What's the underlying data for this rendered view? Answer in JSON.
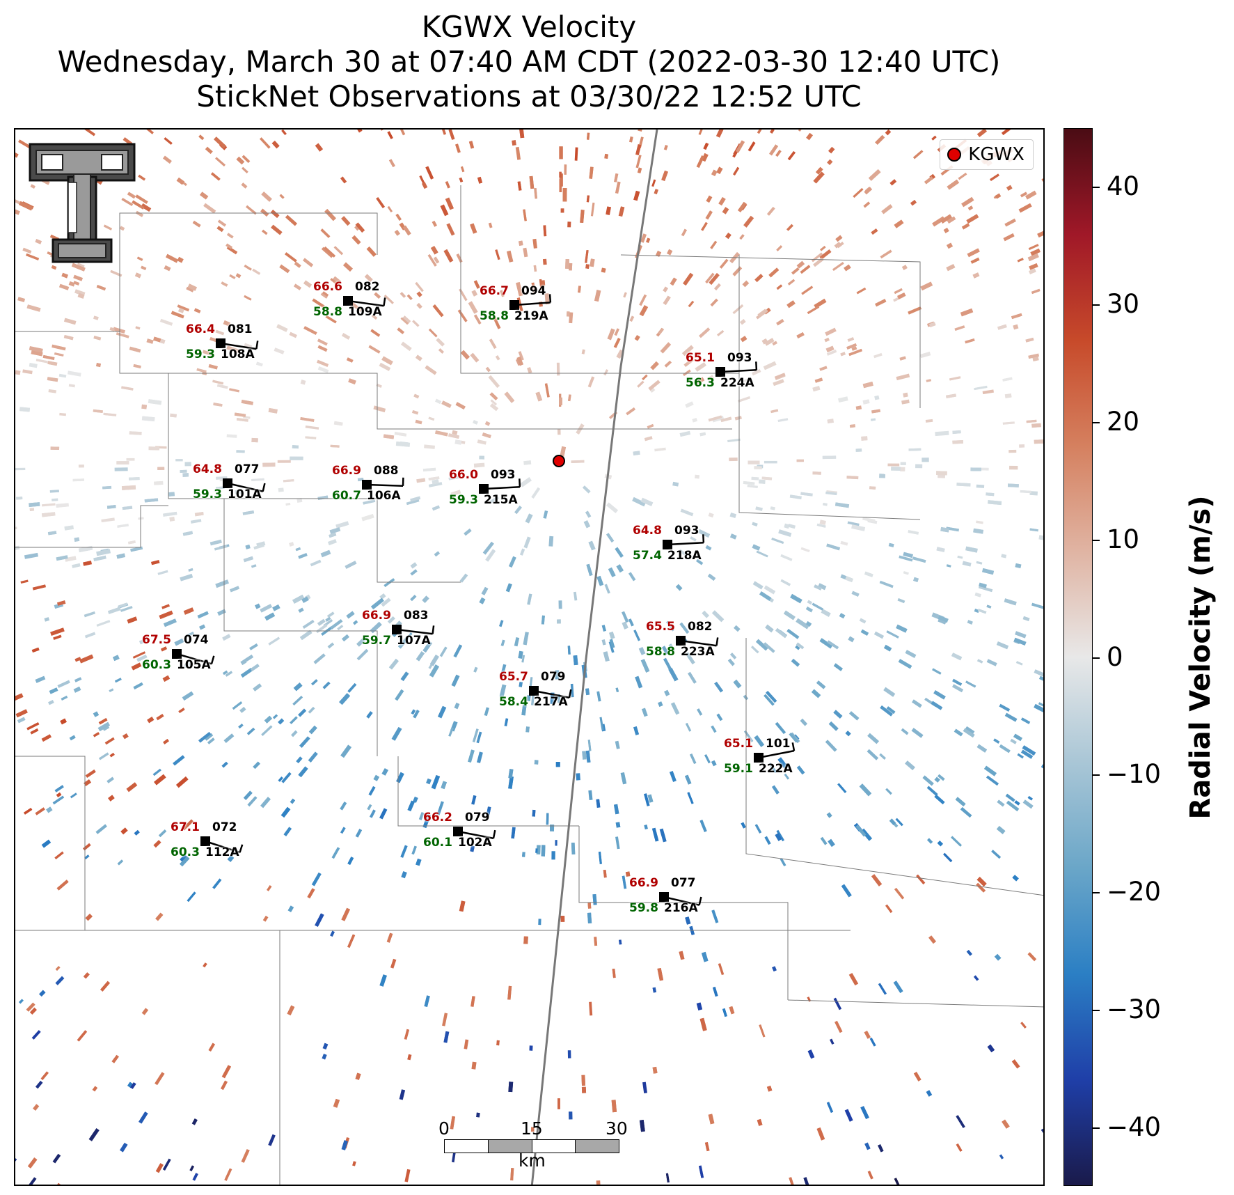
{
  "title": {
    "line1": "KGWX Velocity",
    "line2": "Wednesday, March 30 at 07:40 AM CDT (2022-03-30 12:40 UTC)",
    "line3": "StickNet Observations at 03/30/22 12:52 UTC"
  },
  "legend": {
    "label": "KGWX",
    "marker_color": "#e00000"
  },
  "colorbar": {
    "title": "Radial Velocity (m/s)",
    "min": -45,
    "max": 45,
    "ticks": [
      {
        "value": 40,
        "label": "40"
      },
      {
        "value": 30,
        "label": "30"
      },
      {
        "value": 20,
        "label": "20"
      },
      {
        "value": 10,
        "label": "10"
      },
      {
        "value": 0,
        "label": "0"
      },
      {
        "value": -10,
        "label": "−10"
      },
      {
        "value": -20,
        "label": "−20"
      },
      {
        "value": -30,
        "label": "−30"
      },
      {
        "value": -40,
        "label": "−40"
      }
    ],
    "colors": [
      "#1a1a4a",
      "#1f3fa8",
      "#2b7fc4",
      "#6aa6c8",
      "#a9c6d6",
      "#e8e8e8",
      "#e0b4a3",
      "#d5805f",
      "#c74a2a",
      "#a01828",
      "#4a0c14"
    ]
  },
  "scale_bar": {
    "labels": [
      "0",
      "15",
      "30"
    ],
    "unit": "km"
  },
  "stations": [
    {
      "id": "109A",
      "temp": "66.6",
      "dew": "58.8",
      "dir": "082"
    },
    {
      "id": "219A",
      "temp": "66.7",
      "dew": "58.8",
      "dir": "094"
    },
    {
      "id": "108A",
      "temp": "66.4",
      "dew": "59.3",
      "dir": "081"
    },
    {
      "id": "224A",
      "temp": "65.1",
      "dew": "56.3",
      "dir": "093"
    },
    {
      "id": "101A",
      "temp": "64.8",
      "dew": "59.3",
      "dir": "077"
    },
    {
      "id": "106A",
      "temp": "66.9",
      "dew": "60.7",
      "dir": "088"
    },
    {
      "id": "215A",
      "temp": "66.0",
      "dew": "59.3",
      "dir": "093"
    },
    {
      "id": "218A",
      "temp": "64.8",
      "dew": "57.4",
      "dir": "093"
    },
    {
      "id": "107A",
      "temp": "66.9",
      "dew": "59.7",
      "dir": "083"
    },
    {
      "id": "105A",
      "temp": "67.5",
      "dew": "60.3",
      "dir": "074"
    },
    {
      "id": "223A",
      "temp": "65.5",
      "dew": "58.8",
      "dir": "082"
    },
    {
      "id": "217A",
      "temp": "65.7",
      "dew": "58.4",
      "dir": "079"
    },
    {
      "id": "222A",
      "temp": "65.1",
      "dew": "59.1",
      "dir": "101"
    },
    {
      "id": "102A",
      "temp": "66.2",
      "dew": "60.1",
      "dir": "079"
    },
    {
      "id": "112A",
      "temp": "67.1",
      "dew": "60.3",
      "dir": "072"
    },
    {
      "id": "216A",
      "temp": "66.9",
      "dew": "59.8",
      "dir": "077"
    }
  ]
}
